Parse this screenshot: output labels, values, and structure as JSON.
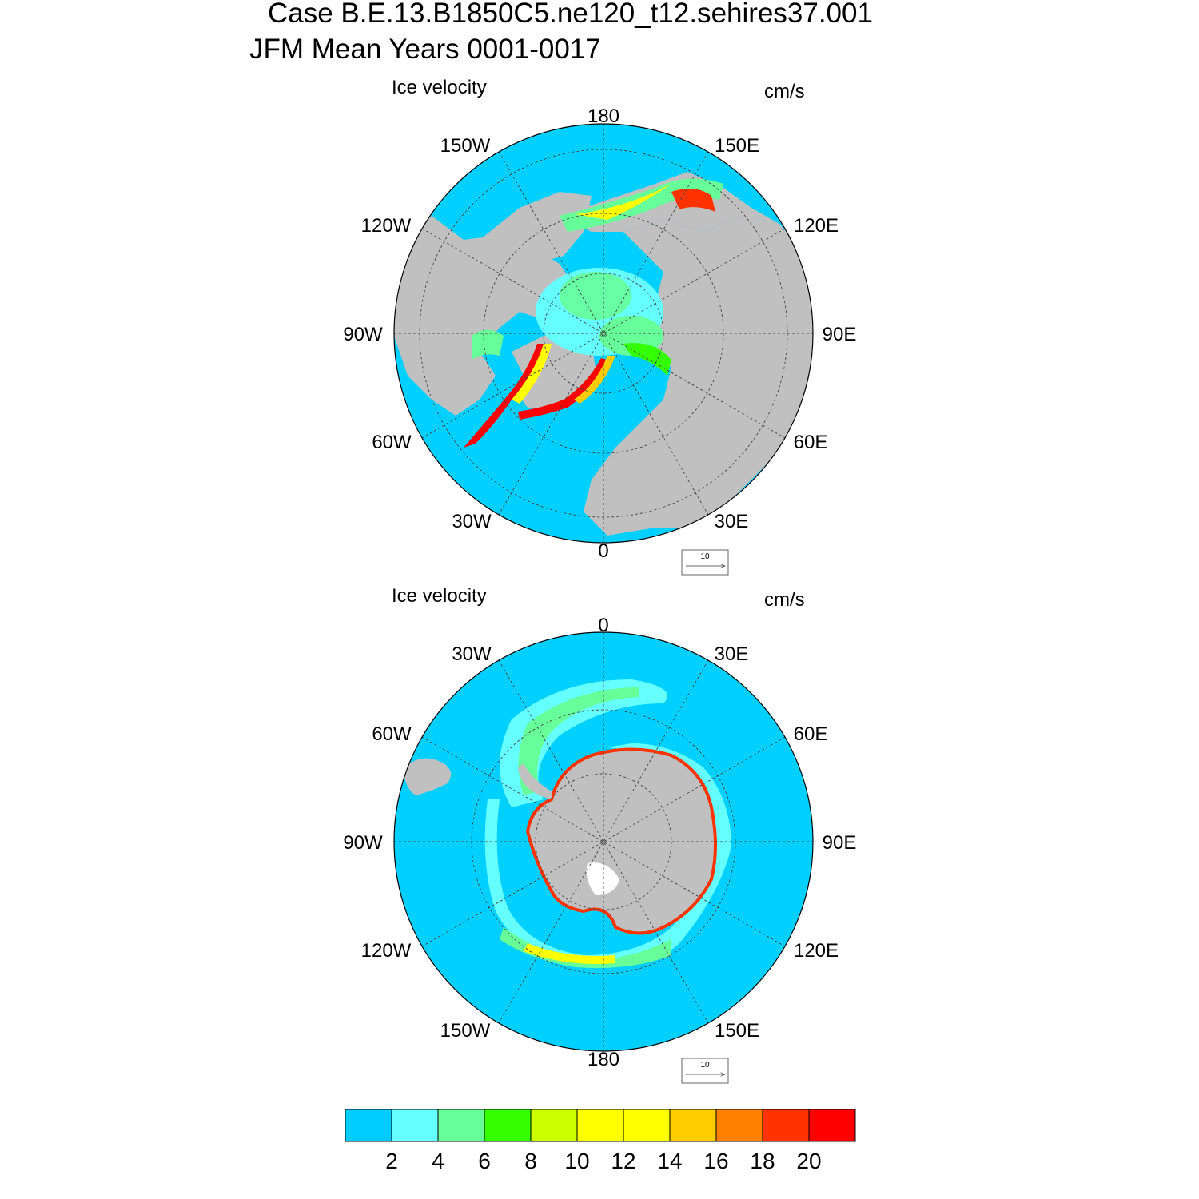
{
  "title": {
    "line1": "Case B.E.13.B1850C5.ne120_t12.sehires37.001",
    "line2": "JFM Mean   Years 0001-0017"
  },
  "colors": {
    "ocean": "#00d0ff",
    "land": "#c0c0c0",
    "land_ice": "#ffffff",
    "grid": "#444444"
  },
  "north_panel": {
    "label_left": "Ice velocity",
    "label_right": "cm/s",
    "lon_labels": {
      "top": "180",
      "top_left": "150W",
      "top_right": "150E",
      "upper_left": "120W",
      "upper_right": "120E",
      "left": "90W",
      "right": "90E",
      "lower_left": "60W",
      "lower_right": "60E",
      "bottom_left": "30W",
      "bottom_right": "30E",
      "bottom": "0"
    },
    "ref_vector": "10"
  },
  "south_panel": {
    "label_left": "Ice velocity",
    "label_right": "cm/s",
    "lon_labels": {
      "top": "0",
      "top_left": "30W",
      "top_right": "30E",
      "upper_left": "60W",
      "upper_right": "60E",
      "left": "90W",
      "right": "90E",
      "lower_left": "120W",
      "lower_right": "120E",
      "bottom_left": "150W",
      "bottom_right": "150E",
      "bottom": "180"
    },
    "ref_vector": "10"
  },
  "colorbar": {
    "colors": [
      "#00ccff",
      "#66ffff",
      "#66ff99",
      "#33ff00",
      "#ccff00",
      "#ffff00",
      "#ffff00",
      "#ffcc00",
      "#ff8000",
      "#ff3300",
      "#ff0000"
    ],
    "labels": [
      "2",
      "4",
      "6",
      "8",
      "10",
      "12",
      "14",
      "16",
      "18",
      "20"
    ]
  }
}
